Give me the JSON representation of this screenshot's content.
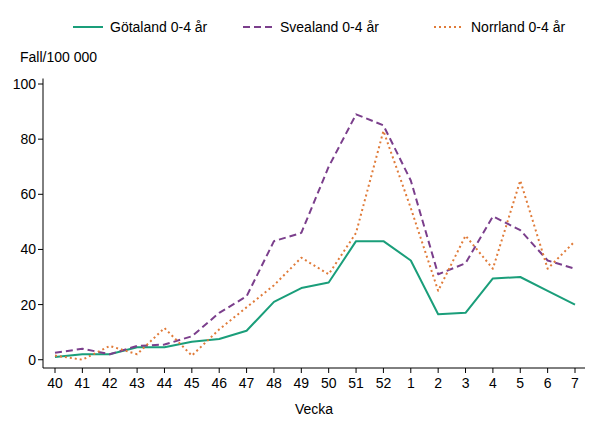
{
  "chart_data": {
    "type": "line",
    "y_label": "Fall/100 000",
    "x_label": "Vecka",
    "categories": [
      "40",
      "41",
      "42",
      "43",
      "44",
      "45",
      "46",
      "47",
      "48",
      "49",
      "50",
      "51",
      "52",
      "1",
      "2",
      "3",
      "4",
      "5",
      "6",
      "7"
    ],
    "series": [
      {
        "name": "Götaland 0-4 år",
        "color": "#1a9e7a",
        "line_style": "solid",
        "values": [
          1,
          2,
          2,
          4.5,
          4.5,
          6.5,
          7.5,
          10.5,
          21,
          26,
          28,
          43,
          43,
          36,
          16.5,
          17,
          29.5,
          30,
          25,
          20
        ]
      },
      {
        "name": "Svealand 0-4 år",
        "color": "#7b3f8c",
        "line_style": "dashed",
        "values": [
          2.5,
          4,
          2,
          5,
          5.5,
          8.5,
          17,
          23,
          43,
          46,
          70,
          89,
          85,
          65,
          31,
          35,
          52,
          47,
          36,
          33
        ]
      },
      {
        "name": "Norrland 0-4 år",
        "color": "#e07b39",
        "line_style": "dotted",
        "values": [
          1.5,
          0,
          5,
          2,
          11.5,
          1.5,
          11,
          19,
          27,
          37,
          31,
          46,
          83,
          55,
          25,
          45,
          33,
          65,
          33,
          43
        ]
      }
    ],
    "ylim": [
      -3,
      102
    ],
    "yticks": [
      0,
      20,
      40,
      60,
      80,
      100
    ],
    "legend": "top",
    "grid": false
  }
}
